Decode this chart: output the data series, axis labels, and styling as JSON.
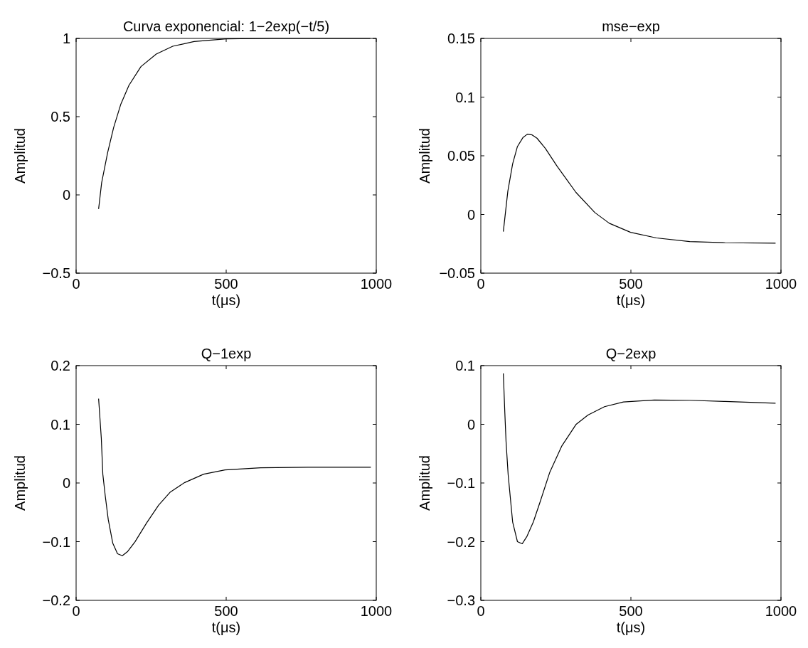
{
  "chart_data": [
    {
      "type": "line",
      "title": "Curva exponencial: 1−2exp(−t/5)",
      "xlabel": "t(μs)",
      "ylabel": "Amplitud",
      "xlim": [
        0,
        1000
      ],
      "xticks": [
        0,
        500,
        1000
      ],
      "ylim": [
        -0.5,
        1
      ],
      "yticks": [
        -0.5,
        0,
        0.5,
        1
      ],
      "series": [
        {
          "color": "#000000",
          "x": [
            75,
            85,
            105,
            125,
            149,
            176,
            216,
            267,
            322,
            393,
            500,
            650,
            800,
            980
          ],
          "values": [
            -0.09,
            0.077,
            0.27,
            0.43,
            0.58,
            0.7,
            0.82,
            0.9,
            0.95,
            0.98,
            0.997,
            1,
            1,
            1
          ]
        }
      ]
    },
    {
      "type": "line",
      "title": "mse−exp",
      "xlabel": "t(μs)",
      "ylabel": "Amplitud",
      "xlim": [
        0,
        1000
      ],
      "xticks": [
        0,
        500,
        1000
      ],
      "ylim": [
        -0.05,
        0.15
      ],
      "yticks": [
        -0.05,
        0,
        0.05,
        0.1,
        0.15
      ],
      "series": [
        {
          "color": "#000000",
          "x": [
            75,
            90,
            106,
            122,
            140,
            155,
            171,
            187,
            215,
            254,
            317,
            380,
            428,
            499,
            585,
            696,
            814,
            982
          ],
          "values": [
            -0.0146,
            0.0198,
            0.0431,
            0.0579,
            0.0654,
            0.0684,
            0.0678,
            0.065,
            0.0563,
            0.0411,
            0.0188,
            0.0016,
            -0.0075,
            -0.0152,
            -0.02,
            -0.0231,
            -0.0241,
            -0.0245
          ]
        }
      ]
    },
    {
      "type": "line",
      "title": "Q−1exp",
      "xlabel": "t(μs)",
      "ylabel": "Amplitud",
      "xlim": [
        0,
        1000
      ],
      "xticks": [
        0,
        500,
        1000
      ],
      "ylim": [
        -0.2,
        0.2
      ],
      "yticks": [
        -0.2,
        -0.1,
        0,
        0.1,
        0.2
      ],
      "series": [
        {
          "color": "#000000",
          "x": [
            75,
            84,
            89,
            97,
            107,
            122,
            138,
            154,
            172,
            196,
            235,
            275,
            314,
            362,
            425,
            496,
            615,
            773,
            982
          ],
          "values": [
            0.1437,
            0.0757,
            0.015,
            -0.0215,
            -0.062,
            -0.1024,
            -0.1206,
            -0.1239,
            -0.1166,
            -0.1004,
            -0.068,
            -0.0377,
            -0.0154,
            0.0008,
            0.015,
            0.0223,
            0.026,
            0.0267,
            0.0267
          ]
        }
      ]
    },
    {
      "type": "line",
      "title": "Q−2exp",
      "xlabel": "t(μs)",
      "ylabel": "Amplitud",
      "xlim": [
        0,
        1000
      ],
      "xticks": [
        0,
        500,
        1000
      ],
      "ylim": [
        -0.3,
        0.1
      ],
      "yticks": [
        -0.3,
        -0.2,
        -0.1,
        0,
        0.1
      ],
      "series": [
        {
          "color": "#000000",
          "x": [
            75,
            80,
            84,
            91,
            106,
            122,
            138,
            154,
            175,
            199,
            230,
            270,
            317,
            357,
            412,
            475,
            578,
            696,
            814,
            982
          ],
          "values": [
            0.0866,
            0.0198,
            -0.0287,
            -0.0854,
            -0.1664,
            -0.2,
            -0.2036,
            -0.1907,
            -0.1664,
            -0.13,
            -0.0814,
            -0.0368,
            -0.0004,
            0.0158,
            0.03,
            0.038,
            0.0413,
            0.0409,
            0.0389,
            0.036
          ]
        }
      ]
    }
  ]
}
